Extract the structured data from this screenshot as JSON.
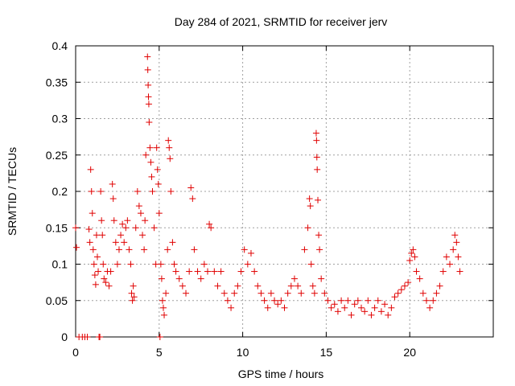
{
  "chart_data": {
    "type": "scatter",
    "title": "Day 284 of 2021, SRMTID for receiver jerv",
    "xlabel": "GPS time / hours",
    "ylabel": "SRMTID / TECUs",
    "xlim": [
      0,
      25
    ],
    "ylim": [
      0,
      0.4
    ],
    "x_ticks": [
      0,
      5,
      10,
      15,
      20
    ],
    "x_tick_labels": [
      "0",
      "5",
      "10",
      "15",
      "20"
    ],
    "y_ticks": [
      0,
      0.05,
      0.1,
      0.15,
      0.2,
      0.25,
      0.3,
      0.35,
      0.4
    ],
    "y_tick_labels": [
      "0",
      "0.05",
      "0.1",
      "0.15",
      "0.2",
      "0.25",
      "0.3",
      "0.35",
      "0.4"
    ],
    "grid": true,
    "marker": "+",
    "color": "#e00000",
    "series": [
      {
        "name": "SRMTID",
        "points": [
          [
            0.0,
            0.15
          ],
          [
            0.05,
            0.123
          ],
          [
            0.2,
            0.0
          ],
          [
            0.4,
            0.0
          ],
          [
            0.55,
            0.0
          ],
          [
            0.7,
            0.0
          ],
          [
            0.8,
            0.148
          ],
          [
            0.85,
            0.13
          ],
          [
            0.9,
            0.23
          ],
          [
            0.95,
            0.2
          ],
          [
            1.0,
            0.17
          ],
          [
            1.05,
            0.12
          ],
          [
            1.1,
            0.1
          ],
          [
            1.15,
            0.085
          ],
          [
            1.2,
            0.072
          ],
          [
            1.25,
            0.14
          ],
          [
            1.3,
            0.11
          ],
          [
            1.35,
            0.09
          ],
          [
            1.4,
            0.0
          ],
          [
            1.45,
            0.0
          ],
          [
            1.5,
            0.2
          ],
          [
            1.55,
            0.16
          ],
          [
            1.6,
            0.14
          ],
          [
            1.65,
            0.1
          ],
          [
            1.7,
            0.08
          ],
          [
            1.8,
            0.075
          ],
          [
            1.9,
            0.09
          ],
          [
            2.0,
            0.07
          ],
          [
            2.1,
            0.09
          ],
          [
            2.2,
            0.21
          ],
          [
            2.25,
            0.19
          ],
          [
            2.3,
            0.16
          ],
          [
            2.4,
            0.13
          ],
          [
            2.5,
            0.1
          ],
          [
            2.6,
            0.12
          ],
          [
            2.7,
            0.14
          ],
          [
            2.8,
            0.155
          ],
          [
            2.9,
            0.13
          ],
          [
            3.0,
            0.15
          ],
          [
            3.1,
            0.16
          ],
          [
            3.2,
            0.12
          ],
          [
            3.3,
            0.1
          ],
          [
            3.35,
            0.06
          ],
          [
            3.4,
            0.05
          ],
          [
            3.45,
            0.07
          ],
          [
            3.5,
            0.055
          ],
          [
            3.6,
            0.15
          ],
          [
            3.7,
            0.2
          ],
          [
            3.8,
            0.18
          ],
          [
            3.9,
            0.17
          ],
          [
            4.0,
            0.14
          ],
          [
            4.1,
            0.12
          ],
          [
            4.15,
            0.16
          ],
          [
            4.2,
            0.25
          ],
          [
            4.3,
            0.385
          ],
          [
            4.32,
            0.367
          ],
          [
            4.34,
            0.346
          ],
          [
            4.36,
            0.33
          ],
          [
            4.38,
            0.32
          ],
          [
            4.4,
            0.295
          ],
          [
            4.45,
            0.26
          ],
          [
            4.5,
            0.24
          ],
          [
            4.55,
            0.22
          ],
          [
            4.6,
            0.2
          ],
          [
            4.7,
            0.15
          ],
          [
            4.8,
            0.1
          ],
          [
            4.85,
            0.26
          ],
          [
            4.9,
            0.23
          ],
          [
            4.95,
            0.21
          ],
          [
            5.0,
            0.17
          ],
          [
            5.05,
            0.0
          ],
          [
            5.1,
            0.1
          ],
          [
            5.15,
            0.08
          ],
          [
            5.2,
            0.05
          ],
          [
            5.25,
            0.04
          ],
          [
            5.3,
            0.03
          ],
          [
            5.4,
            0.06
          ],
          [
            5.5,
            0.12
          ],
          [
            5.55,
            0.27
          ],
          [
            5.6,
            0.26
          ],
          [
            5.65,
            0.245
          ],
          [
            5.7,
            0.2
          ],
          [
            5.8,
            0.13
          ],
          [
            5.9,
            0.1
          ],
          [
            6.0,
            0.09
          ],
          [
            6.2,
            0.08
          ],
          [
            6.4,
            0.07
          ],
          [
            6.6,
            0.06
          ],
          [
            6.8,
            0.09
          ],
          [
            6.9,
            0.205
          ],
          [
            7.0,
            0.19
          ],
          [
            7.1,
            0.12
          ],
          [
            7.3,
            0.09
          ],
          [
            7.5,
            0.08
          ],
          [
            7.7,
            0.1
          ],
          [
            7.9,
            0.09
          ],
          [
            8.0,
            0.155
          ],
          [
            8.1,
            0.15
          ],
          [
            8.3,
            0.09
          ],
          [
            8.5,
            0.07
          ],
          [
            8.7,
            0.09
          ],
          [
            8.9,
            0.06
          ],
          [
            9.1,
            0.05
          ],
          [
            9.3,
            0.04
          ],
          [
            9.5,
            0.06
          ],
          [
            9.7,
            0.07
          ],
          [
            9.9,
            0.09
          ],
          [
            10.1,
            0.12
          ],
          [
            10.3,
            0.1
          ],
          [
            10.5,
            0.115
          ],
          [
            10.7,
            0.09
          ],
          [
            10.9,
            0.07
          ],
          [
            11.1,
            0.06
          ],
          [
            11.3,
            0.05
          ],
          [
            11.5,
            0.04
          ],
          [
            11.7,
            0.06
          ],
          [
            11.9,
            0.05
          ],
          [
            12.1,
            0.045
          ],
          [
            12.3,
            0.05
          ],
          [
            12.5,
            0.04
          ],
          [
            12.7,
            0.06
          ],
          [
            12.9,
            0.07
          ],
          [
            13.1,
            0.08
          ],
          [
            13.3,
            0.07
          ],
          [
            13.5,
            0.06
          ],
          [
            13.7,
            0.12
          ],
          [
            13.9,
            0.15
          ],
          [
            14.0,
            0.19
          ],
          [
            14.05,
            0.18
          ],
          [
            14.1,
            0.1
          ],
          [
            14.2,
            0.07
          ],
          [
            14.3,
            0.06
          ],
          [
            14.4,
            0.28
          ],
          [
            14.42,
            0.27
          ],
          [
            14.44,
            0.247
          ],
          [
            14.46,
            0.23
          ],
          [
            14.5,
            0.188
          ],
          [
            14.55,
            0.14
          ],
          [
            14.6,
            0.12
          ],
          [
            14.7,
            0.08
          ],
          [
            14.9,
            0.06
          ],
          [
            15.1,
            0.05
          ],
          [
            15.3,
            0.04
          ],
          [
            15.5,
            0.045
          ],
          [
            15.7,
            0.035
          ],
          [
            15.9,
            0.05
          ],
          [
            16.1,
            0.04
          ],
          [
            16.3,
            0.05
          ],
          [
            16.5,
            0.03
          ],
          [
            16.7,
            0.045
          ],
          [
            16.9,
            0.05
          ],
          [
            17.1,
            0.04
          ],
          [
            17.3,
            0.035
          ],
          [
            17.5,
            0.05
          ],
          [
            17.7,
            0.03
          ],
          [
            17.9,
            0.04
          ],
          [
            18.1,
            0.05
          ],
          [
            18.3,
            0.035
          ],
          [
            18.5,
            0.045
          ],
          [
            18.7,
            0.03
          ],
          [
            18.9,
            0.04
          ],
          [
            19.1,
            0.055
          ],
          [
            19.3,
            0.06
          ],
          [
            19.5,
            0.065
          ],
          [
            19.7,
            0.07
          ],
          [
            19.9,
            0.075
          ],
          [
            20.0,
            0.105
          ],
          [
            20.1,
            0.115
          ],
          [
            20.2,
            0.12
          ],
          [
            20.3,
            0.11
          ],
          [
            20.4,
            0.09
          ],
          [
            20.6,
            0.08
          ],
          [
            20.8,
            0.06
          ],
          [
            21.0,
            0.05
          ],
          [
            21.2,
            0.04
          ],
          [
            21.4,
            0.05
          ],
          [
            21.6,
            0.06
          ],
          [
            21.8,
            0.07
          ],
          [
            22.0,
            0.09
          ],
          [
            22.2,
            0.11
          ],
          [
            22.4,
            0.1
          ],
          [
            22.6,
            0.12
          ],
          [
            22.7,
            0.14
          ],
          [
            22.8,
            0.13
          ],
          [
            22.9,
            0.11
          ],
          [
            23.0,
            0.09
          ]
        ]
      }
    ]
  }
}
